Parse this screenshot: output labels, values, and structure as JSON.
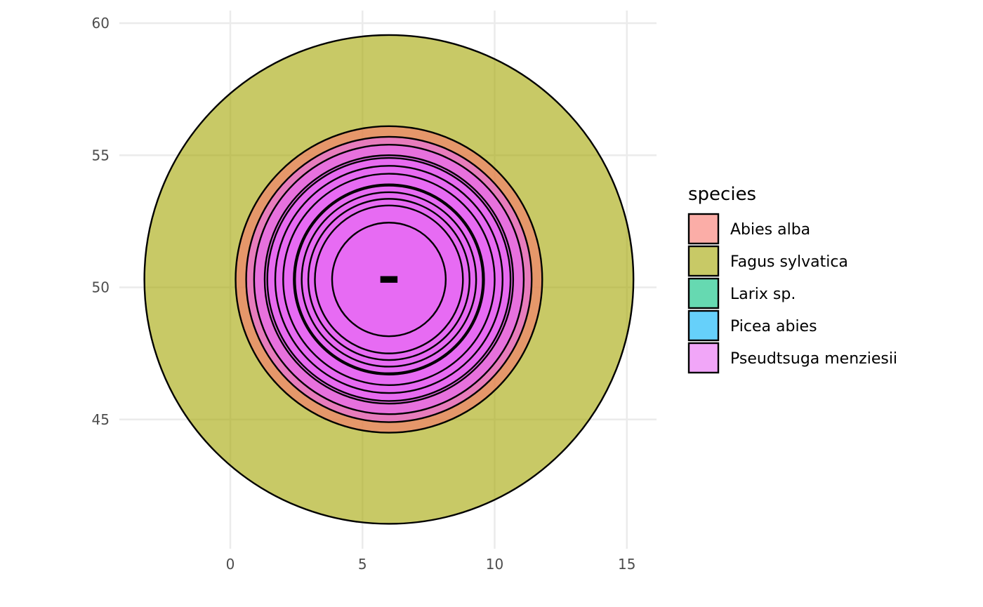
{
  "chart_data": {
    "type": "scatter",
    "title": "",
    "xlabel": "",
    "ylabel": "",
    "xlim": [
      -4.3,
      16.2
    ],
    "ylim": [
      40.3,
      60.6
    ],
    "x_ticks": [
      0,
      5,
      10,
      15
    ],
    "y_ticks": [
      45,
      50,
      55,
      60
    ],
    "x_tick_labels": [
      "0",
      "5",
      "10",
      "15"
    ],
    "y_tick_labels": [
      "45",
      "50",
      "55",
      "60"
    ],
    "grid": true,
    "coord_equal": true,
    "legend_placement": "right",
    "legend": {
      "title": "species",
      "entries": [
        {
          "label": "Abies alba",
          "color": "#F8766D"
        },
        {
          "label": "Fagus sylvatica",
          "color": "#A3A500"
        },
        {
          "label": "Larix sp.",
          "color": "#00BF7D"
        },
        {
          "label": "Picea abies",
          "color": "#00B0F6"
        },
        {
          "label": "Pseudtsuga menziesii",
          "color": "#E76BF3"
        }
      ]
    },
    "fill_alpha": 0.6,
    "series": [
      {
        "name": "Fagus sylvatica",
        "color": "#A3A500",
        "center": [
          6.0,
          50.3
        ],
        "radii": [
          9.25
        ]
      },
      {
        "name": "Abies alba",
        "color": "#F8766D",
        "center": [
          6.0,
          50.3
        ],
        "radii": [
          5.8
        ]
      },
      {
        "name": "Pseudtsuga menziesii",
        "color": "#E76BF3",
        "center": [
          6.0,
          50.3
        ],
        "radii": [
          5.4,
          5.1,
          4.7,
          4.6,
          4.3,
          4.0,
          3.6,
          3.55,
          3.3,
          3.05,
          2.8,
          2.15
        ]
      }
    ],
    "center_marker": {
      "x": 6.0,
      "y": 50.3,
      "width": 0.65,
      "height": 0.25,
      "color": "#000000"
    }
  }
}
